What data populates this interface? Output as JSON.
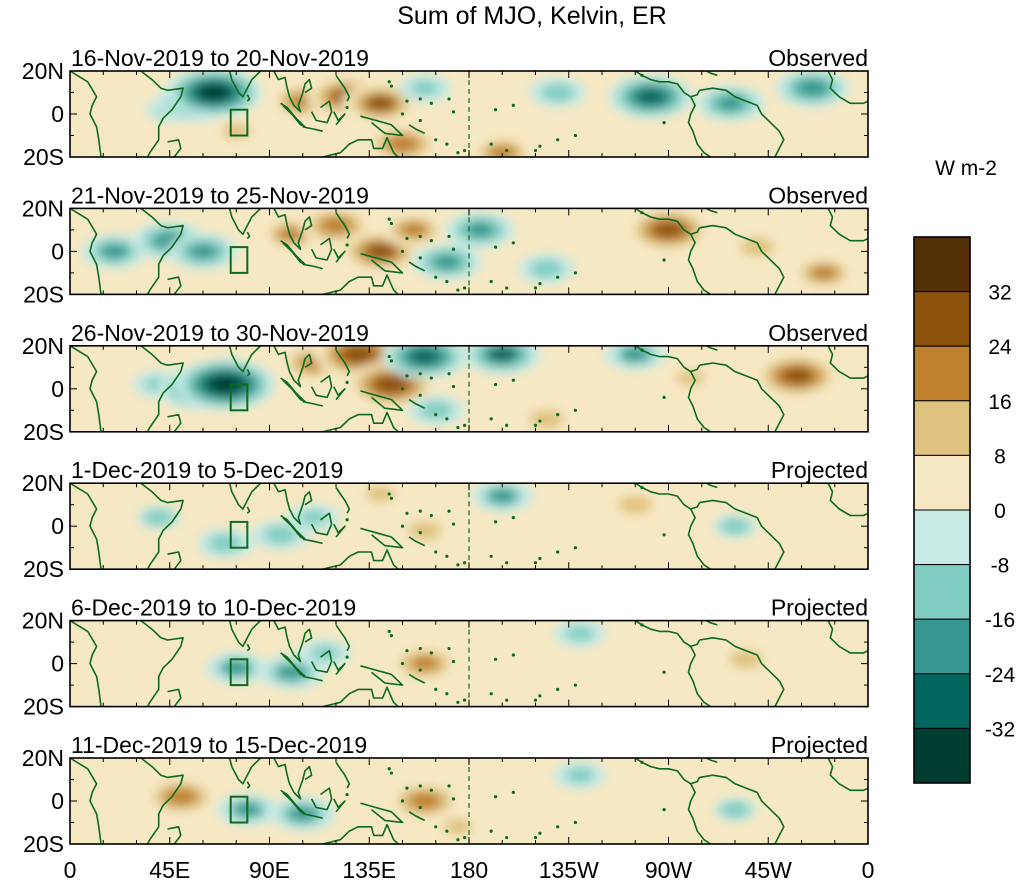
{
  "chart_data": {
    "type": "heatmap",
    "title": "Sum of MJO, Kelvin, ER",
    "xlabel": "",
    "ylabel": "",
    "x_ticks": [
      "0",
      "45E",
      "90E",
      "135E",
      "180",
      "135W",
      "90W",
      "45W",
      "0"
    ],
    "x_tick_values": [
      0,
      45,
      90,
      135,
      180,
      225,
      270,
      315,
      360
    ],
    "y_ticks": [
      "20N",
      "0",
      "20S"
    ],
    "y_tick_values": [
      20,
      0,
      -20
    ],
    "xlim": [
      0,
      360
    ],
    "ylim": [
      -20,
      20
    ],
    "colorbar": {
      "label": "W m-2",
      "tick_labels": [
        "32",
        "24",
        "16",
        "8",
        "0",
        "-8",
        "-16",
        "-24",
        "-32"
      ],
      "tick_values": [
        32,
        24,
        16,
        8,
        0,
        -8,
        -16,
        -24,
        -32
      ],
      "colors": [
        "#543005",
        "#8c510a",
        "#bf812d",
        "#dfc27d",
        "#f6e8c3",
        "#c7eae5",
        "#80cdc1",
        "#35978f",
        "#01665e",
        "#003c30"
      ]
    },
    "panels": [
      {
        "period": "16-Nov-2019 to 20-Nov-2019",
        "status": "Observed",
        "anomalies": [
          {
            "lon": 45,
            "lat": 2,
            "value": -10
          },
          {
            "lon": 57,
            "lat": 6,
            "value": -26
          },
          {
            "lon": 65,
            "lat": 10,
            "value": -34
          },
          {
            "lon": 75,
            "lat": -8,
            "value": 10
          },
          {
            "lon": 105,
            "lat": 6,
            "value": 20
          },
          {
            "lon": 125,
            "lat": 8,
            "value": 26
          },
          {
            "lon": 140,
            "lat": 5,
            "value": 24
          },
          {
            "lon": 150,
            "lat": -14,
            "value": 22
          },
          {
            "lon": 160,
            "lat": 12,
            "value": -12
          },
          {
            "lon": 195,
            "lat": -18,
            "value": 18
          },
          {
            "lon": 220,
            "lat": 10,
            "value": -14
          },
          {
            "lon": 262,
            "lat": 8,
            "value": -28
          },
          {
            "lon": 298,
            "lat": 5,
            "value": -20
          },
          {
            "lon": 335,
            "lat": 12,
            "value": -22
          }
        ]
      },
      {
        "period": "21-Nov-2019 to 25-Nov-2019",
        "status": "Observed",
        "anomalies": [
          {
            "lon": 20,
            "lat": 0,
            "value": -18
          },
          {
            "lon": 45,
            "lat": 5,
            "value": -22
          },
          {
            "lon": 60,
            "lat": 0,
            "value": -20
          },
          {
            "lon": 100,
            "lat": 8,
            "value": 18
          },
          {
            "lon": 120,
            "lat": 12,
            "value": 22
          },
          {
            "lon": 140,
            "lat": 0,
            "value": 26
          },
          {
            "lon": 155,
            "lat": 10,
            "value": 18
          },
          {
            "lon": 170,
            "lat": -5,
            "value": -20
          },
          {
            "lon": 185,
            "lat": 10,
            "value": -20
          },
          {
            "lon": 215,
            "lat": -8,
            "value": -14
          },
          {
            "lon": 270,
            "lat": 10,
            "value": 28
          },
          {
            "lon": 310,
            "lat": 2,
            "value": 14
          },
          {
            "lon": 340,
            "lat": -10,
            "value": 18
          }
        ]
      },
      {
        "period": "26-Nov-2019 to 30-Nov-2019",
        "status": "Observed",
        "anomalies": [
          {
            "lon": 40,
            "lat": 2,
            "value": -12
          },
          {
            "lon": 58,
            "lat": 0,
            "value": -26
          },
          {
            "lon": 70,
            "lat": 2,
            "value": -36
          },
          {
            "lon": 110,
            "lat": 12,
            "value": 20
          },
          {
            "lon": 130,
            "lat": 16,
            "value": 30
          },
          {
            "lon": 145,
            "lat": 2,
            "value": 30
          },
          {
            "lon": 160,
            "lat": 15,
            "value": -28
          },
          {
            "lon": 165,
            "lat": -10,
            "value": -14
          },
          {
            "lon": 195,
            "lat": 16,
            "value": -24
          },
          {
            "lon": 215,
            "lat": -14,
            "value": 14
          },
          {
            "lon": 255,
            "lat": 16,
            "value": -16
          },
          {
            "lon": 280,
            "lat": 5,
            "value": 12
          },
          {
            "lon": 328,
            "lat": 6,
            "value": 28
          }
        ]
      },
      {
        "period": "1-Dec-2019 to 5-Dec-2019",
        "status": "Projected",
        "anomalies": [
          {
            "lon": 40,
            "lat": 4,
            "value": -8
          },
          {
            "lon": 70,
            "lat": -8,
            "value": -14
          },
          {
            "lon": 95,
            "lat": -4,
            "value": -14
          },
          {
            "lon": 110,
            "lat": 4,
            "value": -12
          },
          {
            "lon": 160,
            "lat": -2,
            "value": 14
          },
          {
            "lon": 140,
            "lat": 15,
            "value": 10
          },
          {
            "lon": 195,
            "lat": 14,
            "value": -16
          },
          {
            "lon": 215,
            "lat": 2,
            "value": 6
          },
          {
            "lon": 255,
            "lat": 10,
            "value": 14
          },
          {
            "lon": 300,
            "lat": 0,
            "value": -8
          }
        ]
      },
      {
        "period": "6-Dec-2019 to 10-Dec-2019",
        "status": "Projected",
        "anomalies": [
          {
            "lon": 30,
            "lat": 0,
            "value": 6
          },
          {
            "lon": 75,
            "lat": -2,
            "value": -16
          },
          {
            "lon": 100,
            "lat": -4,
            "value": -18
          },
          {
            "lon": 115,
            "lat": 5,
            "value": -12
          },
          {
            "lon": 160,
            "lat": 0,
            "value": 20
          },
          {
            "lon": 230,
            "lat": 14,
            "value": -12
          },
          {
            "lon": 270,
            "lat": 10,
            "value": 6
          },
          {
            "lon": 305,
            "lat": 2,
            "value": 14
          }
        ]
      },
      {
        "period": "11-Dec-2019 to 15-Dec-2019",
        "status": "Projected",
        "anomalies": [
          {
            "lon": 50,
            "lat": 2,
            "value": 22
          },
          {
            "lon": 80,
            "lat": -4,
            "value": -16
          },
          {
            "lon": 105,
            "lat": -6,
            "value": -18
          },
          {
            "lon": 160,
            "lat": 0,
            "value": 22
          },
          {
            "lon": 175,
            "lat": -12,
            "value": 10
          },
          {
            "lon": 230,
            "lat": 12,
            "value": -12
          },
          {
            "lon": 300,
            "lat": -4,
            "value": -8
          }
        ]
      }
    ]
  }
}
